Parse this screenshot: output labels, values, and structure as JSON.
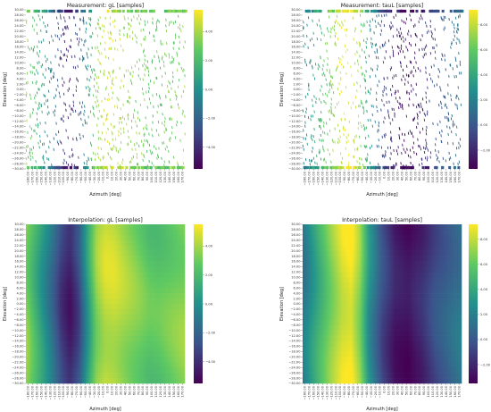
{
  "chart_data": [
    {
      "type": "heatmap",
      "kind": "measurement",
      "title": "Measurement: gL [samples]",
      "xlabel": "Azimuth [deg]",
      "ylabel": "Elevation [deg]",
      "xlim": [
        -180,
        180
      ],
      "ylim": [
        -30,
        30
      ],
      "colorbar_ticks": [
        "4.00",
        "2.00",
        "0.00",
        "−2.00",
        "−4.00"
      ],
      "colorbar_values": [
        4,
        2,
        0,
        -2,
        -4
      ],
      "vmin": -5.5,
      "vmax": 5.5,
      "colormap": [
        "#440154",
        "#3b528b",
        "#21918c",
        "#5ec962",
        "#fde725"
      ],
      "profile_azimuth": [
        -180,
        -150,
        -120,
        -100,
        -80,
        -60,
        -40,
        -20,
        0,
        20,
        40,
        60,
        80,
        100,
        120,
        150,
        180
      ],
      "profile_value": [
        3.5,
        1.0,
        -1.5,
        -3.5,
        -4.5,
        -3.0,
        0.5,
        3.5,
        4.5,
        4.5,
        4.0,
        3.5,
        3.0,
        2.5,
        2.5,
        3.0,
        3.5
      ],
      "x_tick_labels": [
        "−180.00",
        "−170.00",
        "−160.00",
        "−150.00",
        "−140.00",
        "−130.00",
        "−120.00",
        "−110.00",
        "−100.00",
        "−90.00",
        "−80.00",
        "−70.00",
        "−60.00",
        "−50.00",
        "−40.00",
        "−30.00",
        "−20.00",
        "−10.00",
        "0.00",
        "10.00",
        "20.00",
        "30.00",
        "40.00",
        "50.00",
        "60.00",
        "70.00",
        "80.00",
        "90.00",
        "100.00",
        "110.00",
        "120.00",
        "130.00",
        "140.00",
        "150.00",
        "160.00",
        "170.00"
      ],
      "y_tick_labels": [
        "30.00",
        "28.00",
        "26.00",
        "24.00",
        "22.00",
        "20.00",
        "18.00",
        "16.00",
        "14.00",
        "12.00",
        "10.00",
        "8.00",
        "6.00",
        "4.00",
        "2.00",
        "0.00",
        "−2.00",
        "−4.00",
        "−6.00",
        "−8.00",
        "−10.00",
        "−12.00",
        "−14.00",
        "−16.00",
        "−18.00",
        "−20.00",
        "−22.00",
        "−24.00",
        "−26.00",
        "−28.00",
        "−30.00"
      ]
    },
    {
      "type": "heatmap",
      "kind": "measurement",
      "title": "Measurement: tauL [samples]",
      "xlabel": "Azimuth [deg]",
      "ylabel": "Elevation [deg]",
      "xlim": [
        -180,
        180
      ],
      "ylim": [
        -30,
        30
      ],
      "colorbar_ticks": [
        "8.00",
        "6.00",
        "4.00",
        "2.00",
        "0.00",
        "−2.00"
      ],
      "colorbar_values": [
        8,
        6,
        4,
        2,
        0,
        -2
      ],
      "vmin": -3.5,
      "vmax": 9.2,
      "colormap": [
        "#440154",
        "#3b528b",
        "#21918c",
        "#5ec962",
        "#fde725"
      ],
      "profile_azimuth": [
        -180,
        -150,
        -120,
        -90,
        -70,
        -50,
        -30,
        0,
        30,
        60,
        90,
        120,
        150,
        180
      ],
      "profile_value": [
        1.5,
        4.0,
        6.5,
        8.5,
        9.0,
        7.0,
        3.0,
        -0.5,
        -2.5,
        -3.0,
        -2.0,
        -0.5,
        0.5,
        1.5
      ],
      "x_tick_labels": [
        "−180.00",
        "−170.00",
        "−160.00",
        "−150.00",
        "−140.00",
        "−130.00",
        "−120.00",
        "−110.00",
        "−100.00",
        "−90.00",
        "−80.00",
        "−70.00",
        "−60.00",
        "−50.00",
        "−40.00",
        "−30.00",
        "−20.00",
        "−10.00",
        "0.00",
        "10.00",
        "20.00",
        "30.00",
        "40.00",
        "50.00",
        "60.00",
        "70.00",
        "80.00",
        "90.00",
        "100.00",
        "110.00",
        "120.00",
        "130.00",
        "140.00",
        "150.00",
        "160.00",
        "170.00"
      ],
      "y_tick_labels": [
        "30.00",
        "28.00",
        "26.00",
        "24.00",
        "22.00",
        "20.00",
        "18.00",
        "16.00",
        "14.00",
        "12.00",
        "10.00",
        "8.00",
        "6.00",
        "4.00",
        "2.00",
        "0.00",
        "−2.00",
        "−4.00",
        "−6.00",
        "−8.00",
        "−10.00",
        "−12.00",
        "−14.00",
        "−16.00",
        "−18.00",
        "−20.00",
        "−22.00",
        "−24.00",
        "−26.00",
        "−28.00",
        "−30.00"
      ]
    },
    {
      "type": "heatmap",
      "kind": "interpolation",
      "title": "Interpolation: gL [samples]",
      "xlabel": "Azimuth [deg]",
      "ylabel": "Elevation [deg]",
      "xlim": [
        -180,
        180
      ],
      "ylim": [
        -30,
        30
      ],
      "colorbar_ticks": [
        "4.00",
        "2.00",
        "0.00",
        "−2.00",
        "−4.00"
      ],
      "colorbar_values": [
        4,
        2,
        0,
        -2,
        -4
      ],
      "vmin": -5.5,
      "vmax": 5.5,
      "colormap": [
        "#440154",
        "#3b528b",
        "#21918c",
        "#5ec962",
        "#fde725"
      ],
      "profile_azimuth": [
        -180,
        -150,
        -120,
        -100,
        -80,
        -60,
        -40,
        -20,
        0,
        20,
        40,
        60,
        80,
        100,
        120,
        150,
        180
      ],
      "profile_value": [
        3.5,
        1.0,
        -1.5,
        -3.5,
        -4.5,
        -3.0,
        0.5,
        3.5,
        4.5,
        4.5,
        4.0,
        3.5,
        3.0,
        2.5,
        2.5,
        3.0,
        3.5
      ],
      "x_tick_labels": [
        "−180.00",
        "−170.00",
        "−160.00",
        "−150.00",
        "−140.00",
        "−130.00",
        "−120.00",
        "−110.00",
        "−100.00",
        "−90.00",
        "−80.00",
        "−70.00",
        "−60.00",
        "−50.00",
        "−40.00",
        "−30.00",
        "−20.00",
        "−10.00",
        "0.00",
        "10.00",
        "20.00",
        "30.00",
        "40.00",
        "50.00",
        "60.00",
        "70.00",
        "80.00",
        "90.00",
        "100.00",
        "110.00",
        "120.00",
        "130.00",
        "140.00",
        "150.00",
        "160.00",
        "170.00"
      ],
      "y_tick_labels": [
        "30.00",
        "28.00",
        "26.00",
        "24.00",
        "22.00",
        "20.00",
        "18.00",
        "16.00",
        "14.00",
        "12.00",
        "10.00",
        "8.00",
        "6.00",
        "4.00",
        "2.00",
        "0.00",
        "−2.00",
        "−4.00",
        "−6.00",
        "−8.00",
        "−10.00",
        "−12.00",
        "−14.00",
        "−16.00",
        "−18.00",
        "−20.00",
        "−22.00",
        "−24.00",
        "−26.00",
        "−28.00",
        "−30.00"
      ]
    },
    {
      "type": "heatmap",
      "kind": "interpolation",
      "title": "Interpolation: tauL [samples]",
      "xlabel": "Azimuth [deg]",
      "ylabel": "Elevation [deg]",
      "xlim": [
        -180,
        180
      ],
      "ylim": [
        -30,
        30
      ],
      "colorbar_ticks": [
        "8.00",
        "6.00",
        "4.00",
        "2.00",
        "0.00",
        "−2.00"
      ],
      "colorbar_values": [
        8,
        6,
        4,
        2,
        0,
        -2
      ],
      "vmin": -3.5,
      "vmax": 9.2,
      "colormap": [
        "#440154",
        "#3b528b",
        "#21918c",
        "#5ec962",
        "#fde725"
      ],
      "profile_azimuth": [
        -180,
        -150,
        -120,
        -90,
        -70,
        -50,
        -30,
        0,
        30,
        60,
        90,
        120,
        150,
        180
      ],
      "profile_value": [
        1.5,
        4.0,
        6.5,
        8.5,
        9.0,
        7.0,
        3.0,
        -0.5,
        -2.5,
        -3.0,
        -2.0,
        -0.5,
        0.5,
        1.5
      ],
      "x_tick_labels": [
        "−180.00",
        "−170.00",
        "−160.00",
        "−150.00",
        "−140.00",
        "−130.00",
        "−120.00",
        "−110.00",
        "−100.00",
        "−90.00",
        "−80.00",
        "−70.00",
        "−60.00",
        "−50.00",
        "−40.00",
        "−30.00",
        "−20.00",
        "−10.00",
        "0.00",
        "10.00",
        "20.00",
        "30.00",
        "40.00",
        "50.00",
        "60.00",
        "70.00",
        "80.00",
        "90.00",
        "100.00",
        "110.00",
        "120.00",
        "130.00",
        "140.00",
        "150.00",
        "160.00",
        "170.00"
      ],
      "y_tick_labels": [
        "30.00",
        "28.00",
        "26.00",
        "24.00",
        "22.00",
        "20.00",
        "18.00",
        "16.00",
        "14.00",
        "12.00",
        "10.00",
        "8.00",
        "6.00",
        "4.00",
        "2.00",
        "0.00",
        "−2.00",
        "−4.00",
        "−6.00",
        "−8.00",
        "−10.00",
        "−12.00",
        "−14.00",
        "−16.00",
        "−18.00",
        "−20.00",
        "−22.00",
        "−24.00",
        "−26.00",
        "−28.00",
        "−30.00"
      ]
    }
  ]
}
